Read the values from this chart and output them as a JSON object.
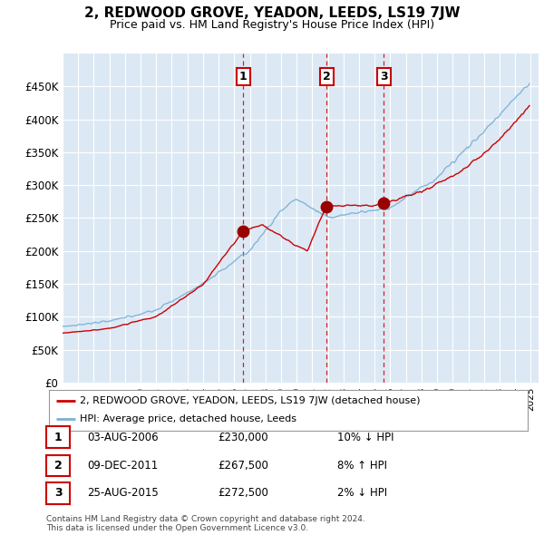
{
  "title": "2, REDWOOD GROVE, YEADON, LEEDS, LS19 7JW",
  "subtitle": "Price paid vs. HM Land Registry's House Price Index (HPI)",
  "background_color": "#ffffff",
  "plot_bg_color": "#dce9f5",
  "grid_color": "#ffffff",
  "ylim": [
    0,
    500000
  ],
  "yticks": [
    0,
    50000,
    100000,
    150000,
    200000,
    250000,
    300000,
    350000,
    400000,
    450000
  ],
  "ytick_labels": [
    "£0",
    "£50K",
    "£100K",
    "£150K",
    "£200K",
    "£250K",
    "£300K",
    "£350K",
    "£400K",
    "£450K"
  ],
  "sale_dates_idx": [
    139,
    203,
    247
  ],
  "sale_prices": [
    230000,
    267500,
    272500
  ],
  "sale_labels": [
    "1",
    "2",
    "3"
  ],
  "sale_hpi_diff": [
    "10% ↓ HPI",
    "8% ↑ HPI",
    "2% ↓ HPI"
  ],
  "sale_date_labels": [
    "03-AUG-2006",
    "09-DEC-2011",
    "25-AUG-2015"
  ],
  "sale_price_labels": [
    "£230,000",
    "£267,500",
    "£272,500"
  ],
  "legend_line1": "2, REDWOOD GROVE, YEADON, LEEDS, LS19 7JW (detached house)",
  "legend_line2": "HPI: Average price, detached house, Leeds",
  "footer": "Contains HM Land Registry data © Crown copyright and database right 2024.\nThis data is licensed under the Open Government Licence v3.0.",
  "hpi_color": "#7ab0d4",
  "sale_line_color": "#cc0000",
  "sale_dot_color": "#990000",
  "vline_color": "#cc0000",
  "marker_box_color": "#cc0000",
  "x_start_year": 1995,
  "x_end_year": 2025
}
